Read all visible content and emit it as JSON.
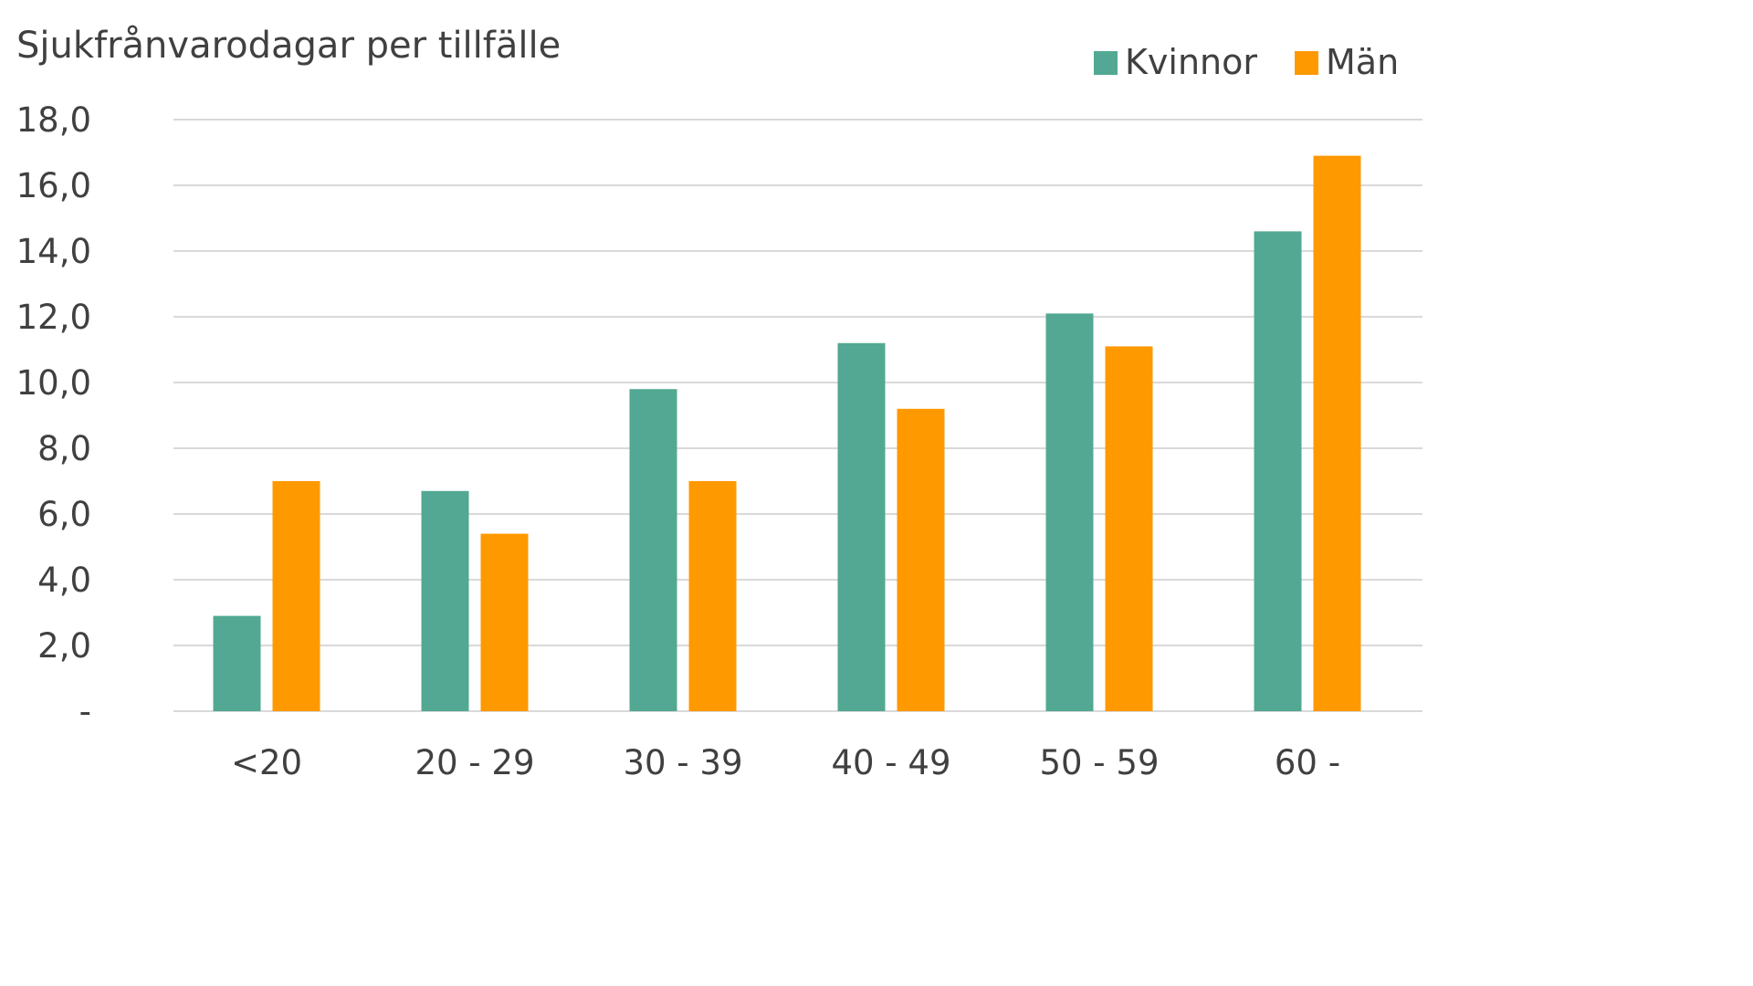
{
  "chart_data": {
    "type": "bar",
    "title": "Sjukfrånvarodagar per tillfälle",
    "xlabel": "",
    "ylabel": "",
    "categories": [
      "<20",
      "20 - 29",
      "30 - 39",
      "40 - 49",
      "50 - 59",
      "60 -"
    ],
    "series": [
      {
        "name": "Kvinnor",
        "color": "#52a893",
        "values": [
          2.9,
          6.7,
          9.8,
          11.2,
          12.1,
          14.6
        ]
      },
      {
        "name": "Män",
        "color": "#ff9900",
        "values": [
          7.0,
          5.4,
          7.0,
          9.2,
          11.1,
          16.9
        ]
      }
    ],
    "ylim": [
      0,
      18
    ],
    "yticks": [
      {
        "value": 0,
        "label": "-"
      },
      {
        "value": 2,
        "label": "2,0"
      },
      {
        "value": 4,
        "label": "4,0"
      },
      {
        "value": 6,
        "label": "6,0"
      },
      {
        "value": 8,
        "label": "8,0"
      },
      {
        "value": 10,
        "label": "10,0"
      },
      {
        "value": 12,
        "label": "12,0"
      },
      {
        "value": 14,
        "label": "14,0"
      },
      {
        "value": 16,
        "label": "16,0"
      },
      {
        "value": 18,
        "label": "18,0"
      }
    ],
    "grid": true,
    "legend": "top-right",
    "gridline_color": "#d9d9d9",
    "text_color": "#404040"
  }
}
